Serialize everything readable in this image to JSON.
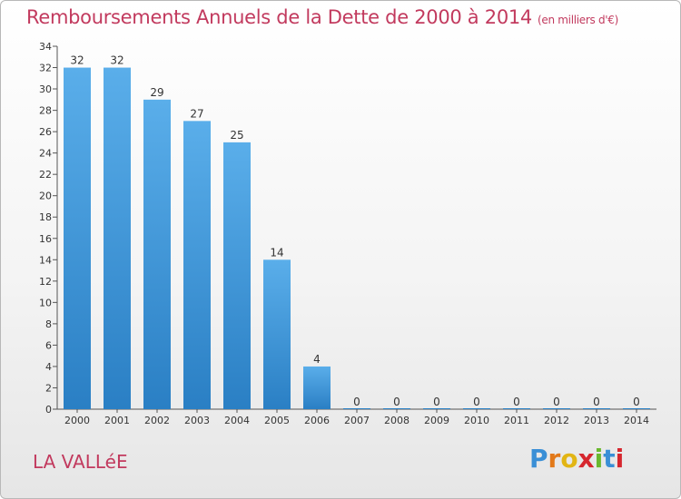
{
  "title": "Remboursements Annuels de la Dette de 2000 à 2014",
  "unit": "(en milliers d'€)",
  "commune": "LA VALLéE",
  "logo": {
    "letters": [
      "P",
      "r",
      "o",
      "x",
      "i",
      "t",
      "i"
    ],
    "colors": [
      "#3a8fd6",
      "#e2791a",
      "#e2b514",
      "#d6262e",
      "#6ab82e",
      "#3a8fd6",
      "#d6262e"
    ]
  },
  "colors": {
    "bar_top": "#5aaeea",
    "bar_bottom": "#2a7fc4",
    "title": "#c23a5e"
  },
  "chart_data": {
    "type": "bar",
    "categories": [
      "2000",
      "2001",
      "2002",
      "2003",
      "2004",
      "2005",
      "2006",
      "2007",
      "2008",
      "2009",
      "2010",
      "2011",
      "2012",
      "2013",
      "2014"
    ],
    "values": [
      32,
      32,
      29,
      27,
      25,
      14,
      4,
      0,
      0,
      0,
      0,
      0,
      0,
      0,
      0
    ],
    "data_labels": [
      "32",
      "32",
      "29",
      "27",
      "25",
      "14",
      "4",
      "0",
      "0",
      "0",
      "0",
      "0",
      "0",
      "0",
      "0"
    ],
    "title": "Remboursements Annuels de la Dette de 2000 à 2014",
    "xlabel": "",
    "ylabel": "",
    "ylim": [
      0,
      34
    ],
    "yticks": [
      0,
      2,
      4,
      6,
      8,
      10,
      12,
      14,
      16,
      18,
      20,
      22,
      24,
      26,
      28,
      30,
      32,
      34
    ],
    "grid": false,
    "legend": "none"
  }
}
